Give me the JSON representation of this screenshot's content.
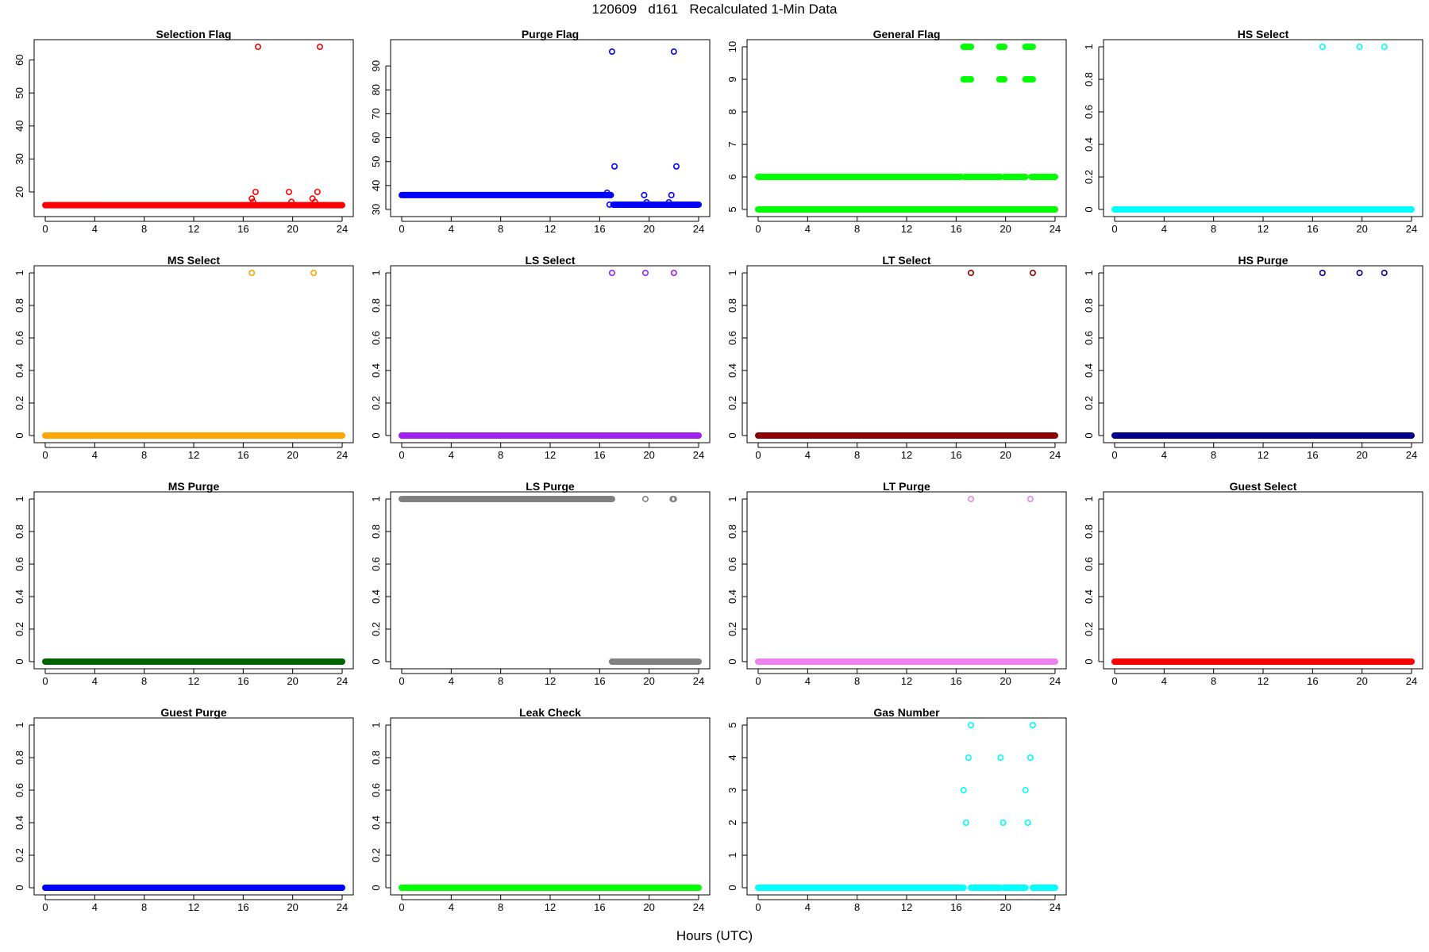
{
  "title": "120609   d161   Recalculated 1-Min Data",
  "xlabel": "Hours (UTC)",
  "chart_data": [
    {
      "type": "scatter",
      "title": "Selection Flag",
      "color": "#ff0000",
      "xlim": [
        0,
        24
      ],
      "ylim": [
        14.7,
        64
      ],
      "xticks": [
        0,
        4,
        8,
        12,
        16,
        20,
        24
      ],
      "yticks": [
        20,
        30,
        40,
        50,
        60
      ],
      "base": [
        {
          "x0": 0,
          "x1": 24,
          "y": 16
        }
      ],
      "points": [
        [
          16.7,
          18
        ],
        [
          16.8,
          17
        ],
        [
          17.0,
          20
        ],
        [
          17.2,
          64
        ],
        [
          19.7,
          20
        ],
        [
          19.9,
          17
        ],
        [
          21.6,
          18
        ],
        [
          21.8,
          17
        ],
        [
          22.0,
          20
        ],
        [
          22.2,
          64
        ]
      ]
    },
    {
      "type": "scatter",
      "title": "Purge Flag",
      "color": "#0000ff",
      "xlim": [
        0,
        24
      ],
      "ylim": [
        30,
        98
      ],
      "xticks": [
        0,
        4,
        8,
        12,
        16,
        20,
        24
      ],
      "yticks": [
        30,
        40,
        50,
        60,
        70,
        80,
        90
      ],
      "base": [
        {
          "x0": 0,
          "x1": 16.9,
          "y": 36
        },
        {
          "x0": 17.1,
          "x1": 24,
          "y": 32
        }
      ],
      "points": [
        [
          16.6,
          37
        ],
        [
          16.8,
          32
        ],
        [
          16.9,
          36
        ],
        [
          17.0,
          96
        ],
        [
          17.2,
          48
        ],
        [
          19.6,
          36
        ],
        [
          19.8,
          33
        ],
        [
          21.6,
          33
        ],
        [
          21.8,
          36
        ],
        [
          22.0,
          96
        ],
        [
          22.2,
          48
        ]
      ]
    },
    {
      "type": "scatter",
      "title": "General Flag",
      "color": "#00ff00",
      "xlim": [
        0,
        24
      ],
      "ylim": [
        5,
        10
      ],
      "xticks": [
        0,
        4,
        8,
        12,
        16,
        20,
        24
      ],
      "yticks": [
        5,
        6,
        7,
        8,
        9,
        10
      ],
      "base": [
        {
          "x0": 0,
          "x1": 24,
          "y": 5
        },
        {
          "x0": 0,
          "x1": 16.4,
          "y": 6
        },
        {
          "x0": 16.7,
          "x1": 19.6,
          "y": 6
        },
        {
          "x0": 19.9,
          "x1": 21.6,
          "y": 6
        },
        {
          "x0": 22.1,
          "x1": 24,
          "y": 6
        }
      ],
      "segments": [
        {
          "x0": 16.6,
          "x1": 17.2,
          "y": 10
        },
        {
          "x0": 16.6,
          "x1": 17.2,
          "y": 9
        },
        {
          "x0": 19.5,
          "x1": 19.9,
          "y": 10
        },
        {
          "x0": 19.5,
          "x1": 19.9,
          "y": 9
        },
        {
          "x0": 21.6,
          "x1": 22.2,
          "y": 10
        },
        {
          "x0": 21.6,
          "x1": 22.2,
          "y": 9
        }
      ],
      "points": []
    },
    {
      "type": "scatter",
      "title": "HS Select",
      "color": "#00ffff",
      "xlim": [
        0,
        24
      ],
      "ylim": [
        0,
        1
      ],
      "xticks": [
        0,
        4,
        8,
        12,
        16,
        20,
        24
      ],
      "yticks": [
        0,
        0.2,
        0.4,
        0.6,
        0.8,
        1
      ],
      "base": [
        {
          "x0": 0,
          "x1": 24,
          "y": 0
        }
      ],
      "points": [
        [
          16.8,
          1
        ],
        [
          19.8,
          1
        ],
        [
          21.8,
          1
        ]
      ]
    },
    {
      "type": "scatter",
      "title": "MS Select",
      "color": "#ffa500",
      "xlim": [
        0,
        24
      ],
      "ylim": [
        0,
        1
      ],
      "xticks": [
        0,
        4,
        8,
        12,
        16,
        20,
        24
      ],
      "yticks": [
        0,
        0.2,
        0.4,
        0.6,
        0.8,
        1
      ],
      "base": [
        {
          "x0": 0,
          "x1": 24,
          "y": 0
        }
      ],
      "points": [
        [
          16.7,
          1
        ],
        [
          21.7,
          1
        ]
      ]
    },
    {
      "type": "scatter",
      "title": "LS Select",
      "color": "#a020f0",
      "xlim": [
        0,
        24
      ],
      "ylim": [
        0,
        1
      ],
      "xticks": [
        0,
        4,
        8,
        12,
        16,
        20,
        24
      ],
      "yticks": [
        0,
        0.2,
        0.4,
        0.6,
        0.8,
        1
      ],
      "base": [
        {
          "x0": 0,
          "x1": 24,
          "y": 0
        }
      ],
      "points": [
        [
          17.0,
          1
        ],
        [
          19.7,
          1
        ],
        [
          22.0,
          1
        ]
      ]
    },
    {
      "type": "scatter",
      "title": "LT Select",
      "color": "#8b0000",
      "xlim": [
        0,
        24
      ],
      "ylim": [
        0,
        1
      ],
      "xticks": [
        0,
        4,
        8,
        12,
        16,
        20,
        24
      ],
      "yticks": [
        0,
        0.2,
        0.4,
        0.6,
        0.8,
        1
      ],
      "base": [
        {
          "x0": 0,
          "x1": 24,
          "y": 0
        }
      ],
      "points": [
        [
          17.2,
          1
        ],
        [
          22.2,
          1
        ]
      ]
    },
    {
      "type": "scatter",
      "title": "HS Purge",
      "color": "#00008b",
      "xlim": [
        0,
        24
      ],
      "ylim": [
        0,
        1
      ],
      "xticks": [
        0,
        4,
        8,
        12,
        16,
        20,
        24
      ],
      "yticks": [
        0,
        0.2,
        0.4,
        0.6,
        0.8,
        1
      ],
      "base": [
        {
          "x0": 0,
          "x1": 24,
          "y": 0
        }
      ],
      "points": [
        [
          16.8,
          1
        ],
        [
          19.8,
          1
        ],
        [
          21.8,
          1
        ]
      ]
    },
    {
      "type": "scatter",
      "title": "MS Purge",
      "color": "#006400",
      "xlim": [
        0,
        24
      ],
      "ylim": [
        0,
        1
      ],
      "xticks": [
        0,
        4,
        8,
        12,
        16,
        20,
        24
      ],
      "yticks": [
        0,
        0.2,
        0.4,
        0.6,
        0.8,
        1
      ],
      "base": [
        {
          "x0": 0,
          "x1": 24,
          "y": 0
        }
      ],
      "points": []
    },
    {
      "type": "scatter",
      "title": "LS Purge",
      "color": "#808080",
      "xlim": [
        0,
        24
      ],
      "ylim": [
        0,
        1
      ],
      "xticks": [
        0,
        4,
        8,
        12,
        16,
        20,
        24
      ],
      "yticks": [
        0,
        0.2,
        0.4,
        0.6,
        0.8,
        1
      ],
      "base": [
        {
          "x0": 0,
          "x1": 17.0,
          "y": 1
        },
        {
          "x0": 17.0,
          "x1": 24,
          "y": 0
        }
      ],
      "points": [
        [
          19.7,
          1
        ],
        [
          21.9,
          1
        ],
        [
          22.0,
          1
        ]
      ]
    },
    {
      "type": "scatter",
      "title": "LT Purge",
      "color": "#ee82ee",
      "xlim": [
        0,
        24
      ],
      "ylim": [
        0,
        1
      ],
      "xticks": [
        0,
        4,
        8,
        12,
        16,
        20,
        24
      ],
      "yticks": [
        0,
        0.2,
        0.4,
        0.6,
        0.8,
        1
      ],
      "base": [
        {
          "x0": 0,
          "x1": 24,
          "y": 0
        }
      ],
      "points": [
        [
          17.2,
          1
        ],
        [
          22.0,
          1
        ]
      ]
    },
    {
      "type": "scatter",
      "title": "Guest Select",
      "color": "#ff0000",
      "xlim": [
        0,
        24
      ],
      "ylim": [
        0,
        1
      ],
      "xticks": [
        0,
        4,
        8,
        12,
        16,
        20,
        24
      ],
      "yticks": [
        0,
        0.2,
        0.4,
        0.6,
        0.8,
        1
      ],
      "base": [
        {
          "x0": 0,
          "x1": 24,
          "y": 0
        }
      ],
      "points": []
    },
    {
      "type": "scatter",
      "title": "Guest Purge",
      "color": "#0000ff",
      "xlim": [
        0,
        24
      ],
      "ylim": [
        0,
        1
      ],
      "xticks": [
        0,
        4,
        8,
        12,
        16,
        20,
        24
      ],
      "yticks": [
        0,
        0.2,
        0.4,
        0.6,
        0.8,
        1
      ],
      "base": [
        {
          "x0": 0,
          "x1": 24,
          "y": 0
        }
      ],
      "points": []
    },
    {
      "type": "scatter",
      "title": "Leak Check",
      "color": "#00ff00",
      "xlim": [
        0,
        24
      ],
      "ylim": [
        0,
        1
      ],
      "xticks": [
        0,
        4,
        8,
        12,
        16,
        20,
        24
      ],
      "yticks": [
        0,
        0.2,
        0.4,
        0.6,
        0.8,
        1
      ],
      "base": [
        {
          "x0": 0,
          "x1": 24,
          "y": 0
        }
      ],
      "points": []
    },
    {
      "type": "scatter",
      "title": "Gas Number",
      "color": "#00ffff",
      "xlim": [
        0,
        24
      ],
      "ylim": [
        0,
        5
      ],
      "xticks": [
        0,
        4,
        8,
        12,
        16,
        20,
        24
      ],
      "yticks": [
        0,
        1,
        2,
        3,
        4,
        5
      ],
      "base": [
        {
          "x0": 0,
          "x1": 16.6,
          "y": 0
        },
        {
          "x0": 17.2,
          "x1": 19.6,
          "y": 0
        },
        {
          "x0": 19.9,
          "x1": 21.6,
          "y": 0
        },
        {
          "x0": 22.2,
          "x1": 24,
          "y": 0
        }
      ],
      "points": [
        [
          16.6,
          3
        ],
        [
          16.8,
          2
        ],
        [
          17.0,
          4
        ],
        [
          17.2,
          5
        ],
        [
          19.6,
          4
        ],
        [
          19.8,
          2
        ],
        [
          21.6,
          3
        ],
        [
          21.8,
          2
        ],
        [
          22.0,
          4
        ],
        [
          22.2,
          5
        ]
      ]
    }
  ]
}
